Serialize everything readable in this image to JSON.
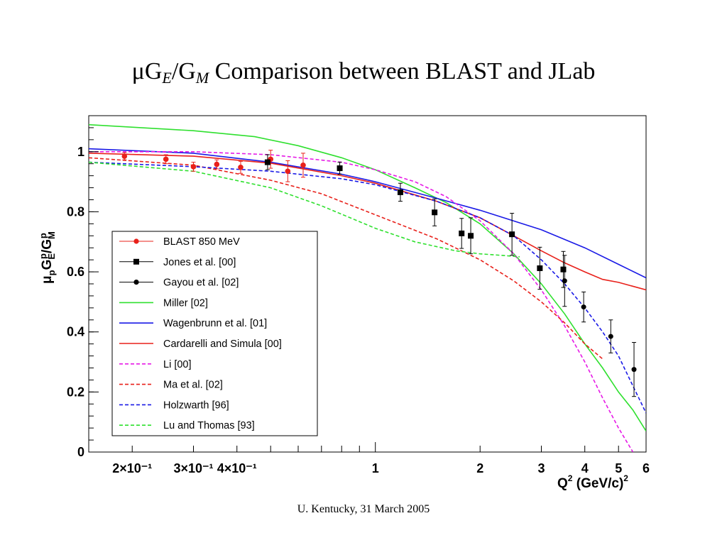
{
  "slide": {
    "title_main": "μG",
    "title_sub_e": "E",
    "title_slash": "/G",
    "title_sub_m": "M",
    "title_rest": " Comparison between BLAST and JLab",
    "footer": "U. Kentucky, 31 March 2005"
  },
  "chart_data": {
    "type": "line",
    "xscale": "log",
    "xlim": [
      0.15,
      6
    ],
    "ylim": [
      0,
      1.12
    ],
    "xlabel": "Q² (GeV/c)²",
    "ylabel": "μpGEp/GMp",
    "x_ticks": [
      {
        "value": 0.2,
        "label": "2×10⁻¹"
      },
      {
        "value": 0.3,
        "label": "3×10⁻¹"
      },
      {
        "value": 0.4,
        "label": "4×10⁻¹"
      },
      {
        "value": 1,
        "label": "1"
      },
      {
        "value": 2,
        "label": "2"
      },
      {
        "value": 3,
        "label": "3"
      },
      {
        "value": 4,
        "label": "4"
      },
      {
        "value": 5,
        "label": "5"
      },
      {
        "value": 6,
        "label": "6"
      }
    ],
    "y_ticks": [
      {
        "value": 0,
        "label": "0"
      },
      {
        "value": 0.2,
        "label": "0.2"
      },
      {
        "value": 0.4,
        "label": "0.4"
      },
      {
        "value": 0.6,
        "label": "0.6"
      },
      {
        "value": 0.8,
        "label": "0.8"
      },
      {
        "value": 1,
        "label": "1"
      }
    ],
    "legend_position": "lower-left",
    "series": [
      {
        "name": "BLAST 850 MeV",
        "kind": "points",
        "marker": "circle",
        "color": "#e8201a",
        "points": [
          {
            "x": 0.19,
            "y": 0.985,
            "err": 0.012
          },
          {
            "x": 0.25,
            "y": 0.975,
            "err": 0.015
          },
          {
            "x": 0.3,
            "y": 0.95,
            "err": 0.015
          },
          {
            "x": 0.35,
            "y": 0.958,
            "err": 0.015
          },
          {
            "x": 0.41,
            "y": 0.948,
            "err": 0.02
          },
          {
            "x": 0.5,
            "y": 0.975,
            "err": 0.03
          },
          {
            "x": 0.56,
            "y": 0.935,
            "err": 0.035
          },
          {
            "x": 0.62,
            "y": 0.955,
            "err": 0.04
          }
        ]
      },
      {
        "name": "Jones et al. [00]",
        "kind": "points",
        "marker": "square",
        "color": "#000000",
        "points": [
          {
            "x": 0.49,
            "y": 0.965,
            "err": 0.025
          },
          {
            "x": 0.79,
            "y": 0.945,
            "err": 0.02
          },
          {
            "x": 1.18,
            "y": 0.865,
            "err": 0.03
          },
          {
            "x": 1.48,
            "y": 0.798,
            "err": 0.045
          },
          {
            "x": 1.77,
            "y": 0.728,
            "err": 0.05
          },
          {
            "x": 1.88,
            "y": 0.72,
            "err": 0.06
          },
          {
            "x": 2.47,
            "y": 0.725,
            "err": 0.07
          },
          {
            "x": 2.97,
            "y": 0.612,
            "err": 0.07
          },
          {
            "x": 3.47,
            "y": 0.608,
            "err": 0.06
          }
        ]
      },
      {
        "name": "Gayou et al. [02]",
        "kind": "points",
        "marker": "dot",
        "color": "#000000",
        "points": [
          {
            "x": 3.5,
            "y": 0.57,
            "err": 0.085
          },
          {
            "x": 3.97,
            "y": 0.483,
            "err": 0.05
          },
          {
            "x": 4.75,
            "y": 0.385,
            "err": 0.055
          },
          {
            "x": 5.54,
            "y": 0.275,
            "err": 0.09
          }
        ]
      },
      {
        "name": "Miller [02]",
        "kind": "line",
        "dash": "solid",
        "color": "#2fe02f",
        "points": [
          [
            0.15,
            1.09
          ],
          [
            0.3,
            1.07
          ],
          [
            0.45,
            1.05
          ],
          [
            0.6,
            1.02
          ],
          [
            0.8,
            0.98
          ],
          [
            1,
            0.94
          ],
          [
            1.3,
            0.88
          ],
          [
            1.6,
            0.83
          ],
          [
            2,
            0.76
          ],
          [
            2.5,
            0.66
          ],
          [
            3,
            0.56
          ],
          [
            3.5,
            0.46
          ],
          [
            4,
            0.36
          ],
          [
            4.5,
            0.28
          ],
          [
            5,
            0.2
          ],
          [
            5.5,
            0.14
          ],
          [
            6,
            0.07
          ]
        ]
      },
      {
        "name": "Wagenbrunn et al. [01]",
        "kind": "line",
        "dash": "solid",
        "color": "#1a1ae6",
        "points": [
          [
            0.15,
            1.01
          ],
          [
            0.3,
            0.995
          ],
          [
            0.5,
            0.965
          ],
          [
            0.8,
            0.925
          ],
          [
            1,
            0.9
          ],
          [
            1.5,
            0.845
          ],
          [
            2,
            0.805
          ],
          [
            3,
            0.74
          ],
          [
            4,
            0.68
          ],
          [
            5,
            0.625
          ],
          [
            6,
            0.58
          ]
        ]
      },
      {
        "name": "Cardarelli and Simula [00]",
        "kind": "line",
        "dash": "solid",
        "color": "#e8201a",
        "points": [
          [
            0.15,
            0.995
          ],
          [
            0.3,
            0.985
          ],
          [
            0.5,
            0.962
          ],
          [
            0.8,
            0.92
          ],
          [
            1,
            0.895
          ],
          [
            1.5,
            0.835
          ],
          [
            2,
            0.78
          ],
          [
            2.5,
            0.72
          ],
          [
            3,
            0.67
          ],
          [
            3.5,
            0.63
          ],
          [
            4,
            0.6
          ],
          [
            4.5,
            0.575
          ],
          [
            5,
            0.565
          ],
          [
            6,
            0.54
          ]
        ]
      },
      {
        "name": "Li [00]",
        "kind": "line",
        "dash": "dash",
        "color": "#e61ae6",
        "points": [
          [
            0.15,
            1.0
          ],
          [
            0.3,
            1.0
          ],
          [
            0.5,
            0.99
          ],
          [
            0.8,
            0.965
          ],
          [
            1,
            0.94
          ],
          [
            1.3,
            0.9
          ],
          [
            1.6,
            0.85
          ],
          [
            2,
            0.77
          ],
          [
            2.5,
            0.66
          ],
          [
            3,
            0.54
          ],
          [
            3.5,
            0.42
          ],
          [
            4,
            0.3
          ],
          [
            4.5,
            0.18
          ],
          [
            5,
            0.08
          ],
          [
            5.5,
            0.0
          ]
        ]
      },
      {
        "name": "Ma et al. [02]",
        "kind": "line",
        "dash": "dash",
        "color": "#e8201a",
        "points": [
          [
            0.15,
            0.98
          ],
          [
            0.3,
            0.955
          ],
          [
            0.5,
            0.905
          ],
          [
            0.7,
            0.86
          ],
          [
            1,
            0.79
          ],
          [
            1.5,
            0.71
          ],
          [
            2,
            0.64
          ],
          [
            2.5,
            0.57
          ],
          [
            3,
            0.5
          ],
          [
            3.5,
            0.43
          ],
          [
            4,
            0.36
          ],
          [
            4.5,
            0.31
          ]
        ]
      },
      {
        "name": "Holzwarth [96]",
        "kind": "line",
        "dash": "dash",
        "color": "#1a1ae6",
        "points": [
          [
            0.15,
            0.965
          ],
          [
            0.3,
            0.95
          ],
          [
            0.5,
            0.935
          ],
          [
            0.8,
            0.91
          ],
          [
            1,
            0.89
          ],
          [
            1.5,
            0.835
          ],
          [
            2,
            0.78
          ],
          [
            2.5,
            0.72
          ],
          [
            3,
            0.64
          ],
          [
            3.5,
            0.56
          ],
          [
            4,
            0.48
          ],
          [
            4.5,
            0.4
          ],
          [
            5,
            0.32
          ],
          [
            5.5,
            0.22
          ],
          [
            6,
            0.13
          ]
        ]
      },
      {
        "name": "Lu and Thomas [93]",
        "kind": "line",
        "dash": "dash",
        "color": "#2fe02f",
        "points": [
          [
            0.15,
            0.965
          ],
          [
            0.3,
            0.935
          ],
          [
            0.5,
            0.88
          ],
          [
            0.7,
            0.82
          ],
          [
            1,
            0.745
          ],
          [
            1.3,
            0.7
          ],
          [
            1.7,
            0.67
          ],
          [
            2,
            0.66
          ],
          [
            2.3,
            0.655
          ],
          [
            2.6,
            0.65
          ]
        ]
      }
    ]
  }
}
